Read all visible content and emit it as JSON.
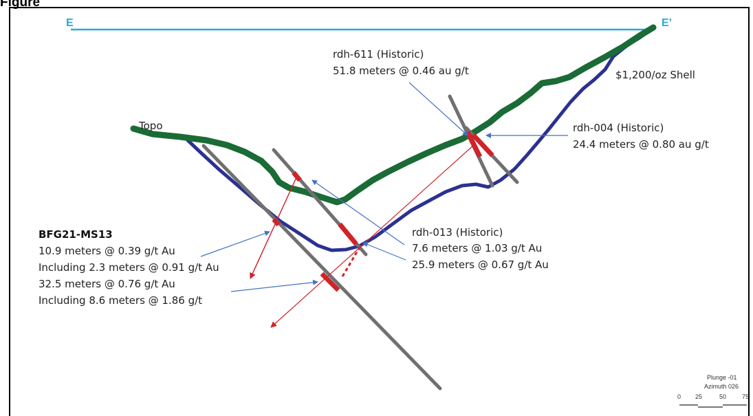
{
  "caption": "Figure",
  "section": {
    "start_label": "E",
    "end_label": "E’",
    "line_color": "#29a8d8"
  },
  "topo_label": "Topo",
  "shell_label": "$1,200/oz Shell",
  "colors": {
    "topo": "#1a6b35",
    "shell": "#2b3190",
    "drill": "#707070",
    "intercept": "#d1232a",
    "leader": "#4472c4"
  },
  "annotations": {
    "rdh611": {
      "title": "rdh-611 (Historic)",
      "result": "51.8 meters @ 0.46 au g/t"
    },
    "rdh004": {
      "title": "rdh-004 (Historic)",
      "result": "24.4 meters @ 0.80 au g/t"
    },
    "rdh013": {
      "title": "rdh-013 (Historic)",
      "result1": "7.6 meters @ 1.03 g/t Au",
      "result2": "25.9 meters @ 0.67 g/t Au"
    },
    "bfg": {
      "title": "BFG21-MS13",
      "line1": "10.9 meters @ 0.39 g/t Au",
      "line2": "Including 2.3 meters @ 0.91 g/t Au",
      "line3": "32.5 meters @ 0.76 g/t Au",
      "line4": "Including 8.6 meters @ 1.86 g/t"
    }
  },
  "legend": {
    "plunge": "Plunge -01",
    "azimuth": "Azimuth 026",
    "scale": [
      "0",
      "25",
      "50",
      "75"
    ]
  }
}
